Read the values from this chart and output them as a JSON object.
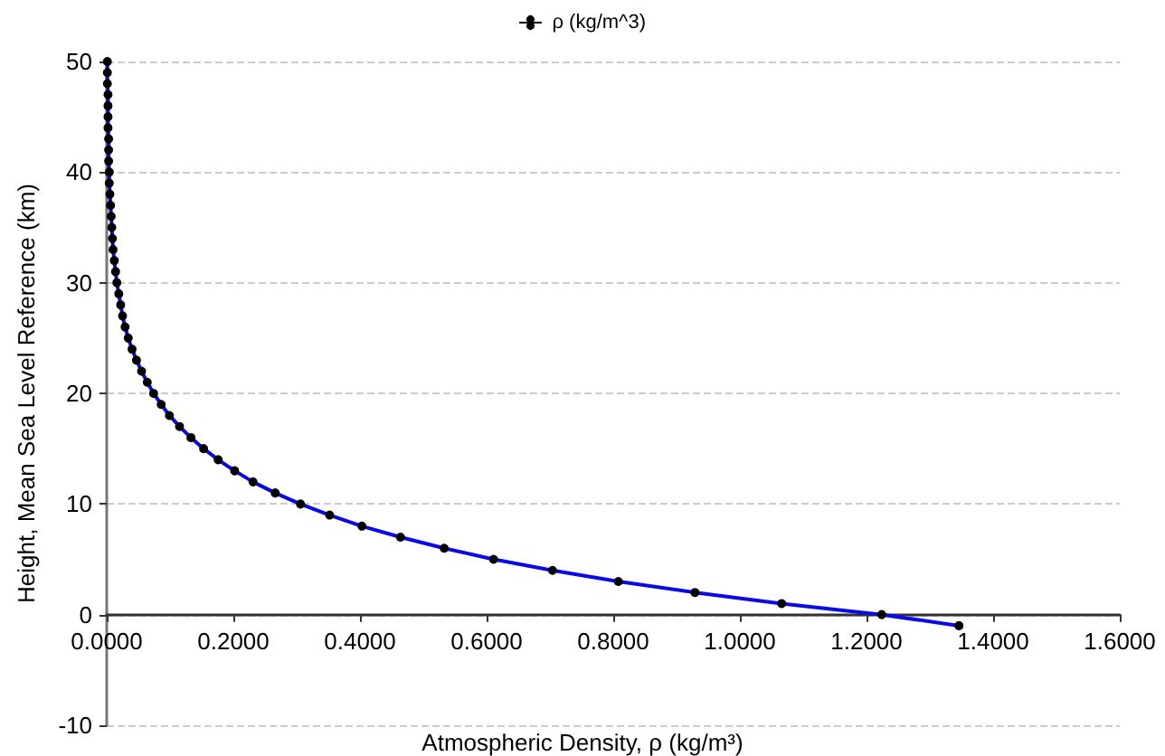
{
  "chart_data": {
    "type": "line",
    "xlabel": "Atmospheric Density, ρ (kg/m³)",
    "ylabel": "Height, Mean Sea Level Reference (km)",
    "series": [
      {
        "name": "ρ (kg/m^3)",
        "color": "#0a0ae6",
        "x": [
          1.346,
          1.224,
          1.066,
          0.929,
          0.808,
          0.704,
          0.611,
          0.533,
          0.464,
          0.403,
          0.352,
          0.306,
          0.266,
          0.231,
          0.202,
          0.176,
          0.153,
          0.133,
          0.115,
          0.099,
          0.086,
          0.074,
          0.064,
          0.055,
          0.047,
          0.04,
          0.034,
          0.029,
          0.025,
          0.022,
          0.019,
          0.016,
          0.014,
          0.012,
          0.01,
          0.009,
          0.008,
          0.007,
          0.006,
          0.005,
          0.004,
          0.004,
          0.003,
          0.003,
          0.003,
          0.002,
          0.002,
          0.002,
          0.002,
          0.001,
          0.001,
          0.001
        ],
        "values": [
          -1,
          0,
          1,
          2,
          3,
          4,
          5,
          6,
          7,
          8,
          9,
          10,
          11,
          12,
          13,
          14,
          15,
          16,
          17,
          18,
          19,
          20,
          21,
          22,
          23,
          24,
          25,
          26,
          27,
          28,
          29,
          30,
          31,
          32,
          33,
          34,
          35,
          36,
          37,
          38,
          39,
          40,
          41,
          42,
          43,
          44,
          45,
          46,
          47,
          48,
          49,
          50
        ]
      }
    ],
    "xlim": [
      0,
      1.6
    ],
    "xticks": [
      {
        "value": 0,
        "label": "0.0000"
      },
      {
        "value": 0.2,
        "label": "0.2000"
      },
      {
        "value": 0.4,
        "label": "0.4000"
      },
      {
        "value": 0.6,
        "label": "0.6000"
      },
      {
        "value": 0.8,
        "label": "0.8000"
      },
      {
        "value": 1.0,
        "label": "1.0000"
      },
      {
        "value": 1.2,
        "label": "1.2000"
      },
      {
        "value": 1.4,
        "label": "1.4000"
      },
      {
        "value": 1.6,
        "label": "1.6000"
      }
    ],
    "ylim": [
      -10,
      50
    ],
    "yticks": [
      -10,
      0,
      10,
      20,
      30,
      40,
      50
    ],
    "grid": "y",
    "legend": "top",
    "marker": "circle",
    "line_style": "solid"
  }
}
